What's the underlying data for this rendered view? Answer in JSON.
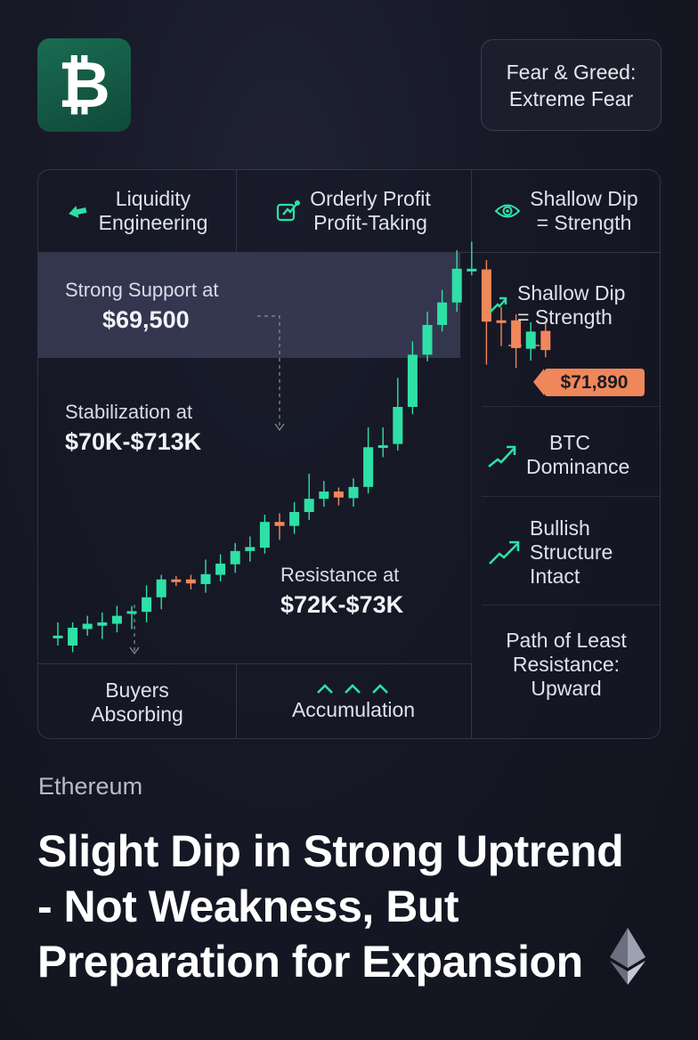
{
  "header": {
    "logo_symbol": "₿",
    "fear_greed_line1": "Fear & Greed:",
    "fear_greed_line2": "Extreme Fear"
  },
  "top_tiles": [
    {
      "line1": "Liquidity",
      "line2": "Engineering",
      "icon": "arrow-icon"
    },
    {
      "line1": "Orderly Profit",
      "line2": "Profit-Taking",
      "icon": "edit-chart-icon"
    },
    {
      "line1": "Shallow Dip",
      "line2": "= Strength",
      "icon": "eye-icon"
    }
  ],
  "right_tiles": [
    {
      "line1": "Shallow Dip",
      "line2": "= Strength",
      "icon": "trend-up-icon"
    },
    {
      "line1": "BTC",
      "line2": "Dominance",
      "icon": "trend-up-icon"
    },
    {
      "line1": "Bullish",
      "line2": "Structure",
      "line3": "Intact",
      "icon": "trend-up-icon"
    },
    {
      "line1": "Path of Least",
      "line2": "Resistance:",
      "line3": "Upward"
    }
  ],
  "bottom_tiles": [
    {
      "line1": "Buyers",
      "line2": "Absorbing"
    },
    {
      "line1": "Accumulation",
      "icon": "chevrons-up-icon"
    }
  ],
  "annotations": {
    "support_label": "Strong Support at",
    "support_value": "$69,500",
    "stabilization_label": "Stabilization at",
    "stabilization_value": "$70K-$713K",
    "resistance_label": "Resistance at",
    "resistance_value": "$72K-$73K",
    "price_tag": "$71,890"
  },
  "chart_data": {
    "type": "candlestick",
    "title": "",
    "xlabel": "",
    "ylabel": "",
    "ylim": [
      67000,
      73600
    ],
    "current_price": 71890,
    "candles": [
      {
        "o": 67500,
        "c": 67500,
        "h": 67700,
        "l": 67350
      },
      {
        "o": 67350,
        "c": 67620,
        "h": 67700,
        "l": 67250
      },
      {
        "o": 67600,
        "c": 67680,
        "h": 67800,
        "l": 67500
      },
      {
        "o": 67650,
        "c": 67700,
        "h": 67850,
        "l": 67450
      },
      {
        "o": 67680,
        "c": 67800,
        "h": 67950,
        "l": 67550
      },
      {
        "o": 67850,
        "c": 67870,
        "h": 67950,
        "l": 67600
      },
      {
        "o": 67860,
        "c": 68080,
        "h": 68260,
        "l": 67700
      },
      {
        "o": 68080,
        "c": 68350,
        "h": 68420,
        "l": 67900
      },
      {
        "o": 68350,
        "c": 68340,
        "h": 68400,
        "l": 68250
      },
      {
        "o": 68350,
        "c": 68290,
        "h": 68420,
        "l": 68200
      },
      {
        "o": 68280,
        "c": 68430,
        "h": 68650,
        "l": 68150
      },
      {
        "o": 68420,
        "c": 68590,
        "h": 68730,
        "l": 68320
      },
      {
        "o": 68580,
        "c": 68780,
        "h": 68900,
        "l": 68450
      },
      {
        "o": 68780,
        "c": 68840,
        "h": 69000,
        "l": 68620
      },
      {
        "o": 68830,
        "c": 69220,
        "h": 69330,
        "l": 68740
      },
      {
        "o": 69220,
        "c": 69160,
        "h": 69350,
        "l": 68950
      },
      {
        "o": 69160,
        "c": 69370,
        "h": 69520,
        "l": 69040
      },
      {
        "o": 69370,
        "c": 69570,
        "h": 69950,
        "l": 69250
      },
      {
        "o": 69570,
        "c": 69680,
        "h": 69840,
        "l": 69450
      },
      {
        "o": 69680,
        "c": 69590,
        "h": 69740,
        "l": 69470
      },
      {
        "o": 69580,
        "c": 69750,
        "h": 69880,
        "l": 69450
      },
      {
        "o": 69750,
        "c": 70350,
        "h": 70650,
        "l": 69650
      },
      {
        "o": 70350,
        "c": 70380,
        "h": 70650,
        "l": 70200
      },
      {
        "o": 70400,
        "c": 70960,
        "h": 71400,
        "l": 70300
      },
      {
        "o": 70960,
        "c": 71750,
        "h": 71950,
        "l": 70850
      },
      {
        "o": 71750,
        "c": 72200,
        "h": 72400,
        "l": 71650
      },
      {
        "o": 72200,
        "c": 72540,
        "h": 72730,
        "l": 72100
      },
      {
        "o": 72540,
        "c": 73050,
        "h": 73330,
        "l": 72400
      },
      {
        "o": 73050,
        "c": 73050,
        "h": 73460,
        "l": 72950
      },
      {
        "o": 73040,
        "c": 72250,
        "h": 73180,
        "l": 71600
      },
      {
        "o": 72270,
        "c": 72250,
        "h": 72470,
        "l": 71880
      },
      {
        "o": 72270,
        "c": 71850,
        "h": 72360,
        "l": 71550
      },
      {
        "o": 71840,
        "c": 72100,
        "h": 72240,
        "l": 71660
      },
      {
        "o": 72110,
        "c": 71820,
        "h": 72250,
        "l": 71710
      }
    ]
  }
}
